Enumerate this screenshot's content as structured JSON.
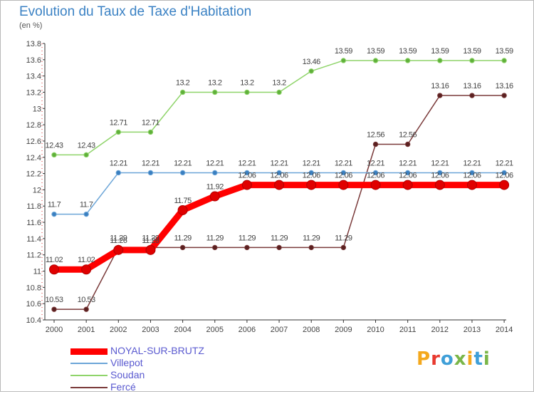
{
  "chart_data": {
    "type": "line",
    "title": "Evolution du Taux de Taxe d'Habitation",
    "subtitle": "(en %)",
    "x": [
      "2000",
      "2001",
      "2002",
      "2003",
      "2004",
      "2005",
      "2006",
      "2007",
      "2008",
      "2009",
      "2010",
      "2011",
      "2012",
      "2013",
      "2014"
    ],
    "yticks": [
      "10.4",
      "10.6",
      "10.8",
      "11",
      "11.2",
      "11.4",
      "11.6",
      "11.8",
      "12",
      "12.2",
      "12.4",
      "12.6",
      "12.8",
      "13",
      "13.2",
      "13.4",
      "13.6",
      "13.8"
    ],
    "ylim": [
      10.4,
      13.8
    ],
    "grid": false,
    "legend_position": "bottom-left",
    "series": [
      {
        "name": "NOYAL-SUR-BRUTZ",
        "color": "#ff0000",
        "values": [
          11.02,
          11.02,
          11.26,
          11.26,
          11.75,
          11.92,
          12.06,
          12.06,
          12.06,
          12.06,
          12.06,
          12.06,
          12.06,
          12.06,
          12.06
        ],
        "labels": [
          "11.02",
          "11.02",
          "11.26",
          "11.26",
          "11.75",
          "11.92",
          "12.06",
          "12.06",
          "12.06",
          "12.06",
          "12.06",
          "12.06",
          "12.06",
          "12.06",
          "12.06"
        ]
      },
      {
        "name": "Villepot",
        "color": "#6da6d8",
        "values": [
          11.7,
          11.7,
          12.21,
          12.21,
          12.21,
          12.21,
          12.21,
          12.21,
          12.21,
          12.21,
          12.21,
          12.21,
          12.21,
          12.21,
          12.21
        ],
        "labels": [
          "11.7",
          "11.7",
          "12.21",
          "12.21",
          "12.21",
          "12.21",
          "12.21",
          "12.21",
          "12.21",
          "12.21",
          "12.21",
          "12.21",
          "12.21",
          "12.21",
          "12.21"
        ]
      },
      {
        "name": "Soudan",
        "color": "#8fd46a",
        "values": [
          12.43,
          12.43,
          12.71,
          12.71,
          13.2,
          13.2,
          13.2,
          13.2,
          13.46,
          13.59,
          13.59,
          13.59,
          13.59,
          13.59,
          13.59
        ],
        "labels": [
          "12.43",
          "12.43",
          "12.71",
          "12.71",
          "13.2",
          "13.2",
          "13.2",
          "13.2",
          "13.46",
          "13.59",
          "13.59",
          "13.59",
          "13.59",
          "13.59",
          "13.59"
        ]
      },
      {
        "name": "Fercé",
        "color": "#7a3a3a",
        "values": [
          10.53,
          10.53,
          11.29,
          11.29,
          11.29,
          11.29,
          11.29,
          11.29,
          11.29,
          11.29,
          12.56,
          12.56,
          13.16,
          13.16,
          13.16
        ],
        "labels": [
          "10.53",
          "10.53",
          "11.29",
          "11.29",
          "11.29",
          "11.29",
          "11.29",
          "11.29",
          "11.29",
          "11.29",
          "12.56",
          "12.56",
          "13.16",
          "13.16",
          "13.16"
        ]
      }
    ]
  },
  "logo": {
    "text": "Proxiti",
    "colors": [
      "#f4a81d",
      "#e8392f",
      "#3f9fd8",
      "#7ab648",
      "#f4a81d",
      "#3f9fd8",
      "#7ab648"
    ]
  }
}
